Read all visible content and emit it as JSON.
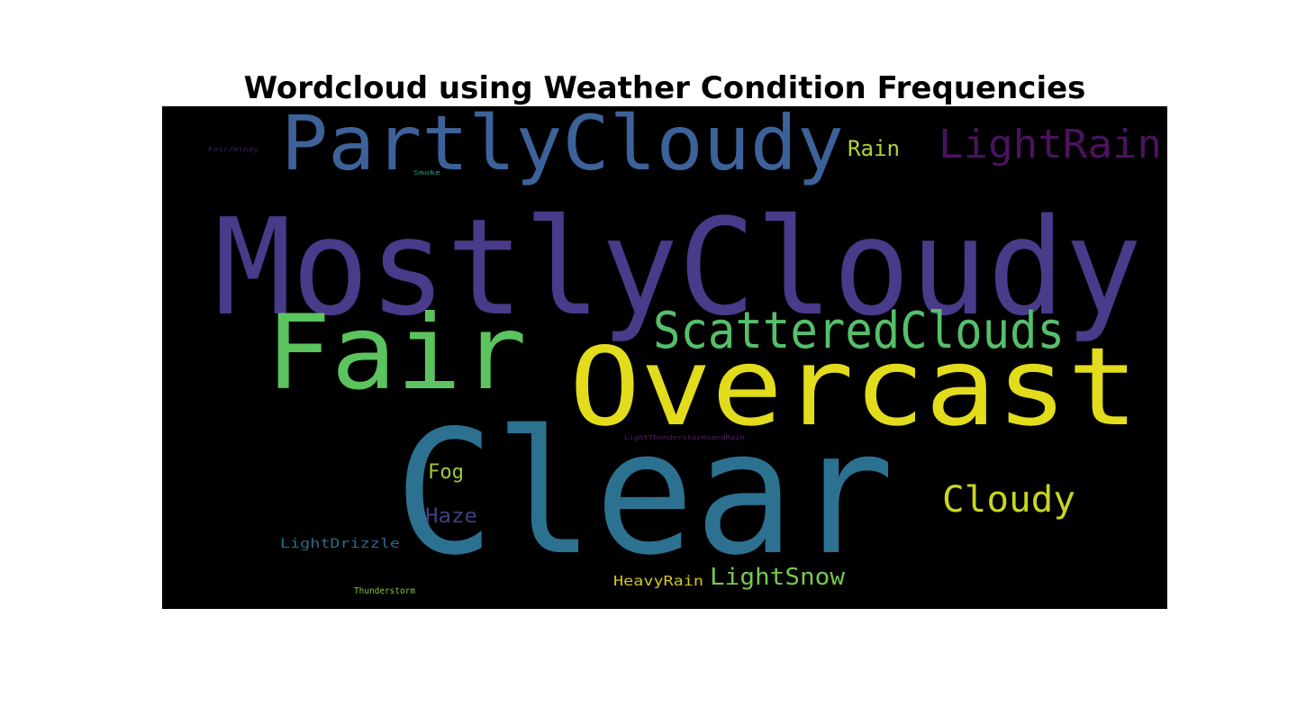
{
  "chart_data": {
    "type": "wordcloud",
    "title": "Wordcloud using Weather Condition Frequencies",
    "background": "#000000",
    "words": [
      {
        "text": "MostlyCloudy",
        "color": "#4a3a8a"
      },
      {
        "text": "Clear",
        "color": "#2d7190"
      },
      {
        "text": "Overcast",
        "color": "#e2dc1c"
      },
      {
        "text": "PartlyCloudy",
        "color": "#3d6299"
      },
      {
        "text": "Fair",
        "color": "#5cc45e"
      },
      {
        "text": "ScatteredClouds",
        "color": "#55bf6a"
      },
      {
        "text": "LightRain",
        "color": "#4b125e"
      },
      {
        "text": "Cloudy",
        "color": "#c8d621"
      },
      {
        "text": "LightSnow",
        "color": "#75c84f"
      },
      {
        "text": "Rain",
        "color": "#b3d138"
      },
      {
        "text": "Fog",
        "color": "#a0c93a"
      },
      {
        "text": "Haze",
        "color": "#40407e"
      },
      {
        "text": "HeavyRain",
        "color": "#d1c61e"
      },
      {
        "text": "LightDrizzle",
        "color": "#2b6a86"
      },
      {
        "text": "Thunderstorm",
        "color": "#8ac43a"
      },
      {
        "text": "LightThunderstormsandRain",
        "color": "#5a1a72"
      },
      {
        "text": "Smoke",
        "color": "#1f9c8a"
      },
      {
        "text": "Fair/Windy",
        "color": "#3f1e62"
      }
    ]
  }
}
